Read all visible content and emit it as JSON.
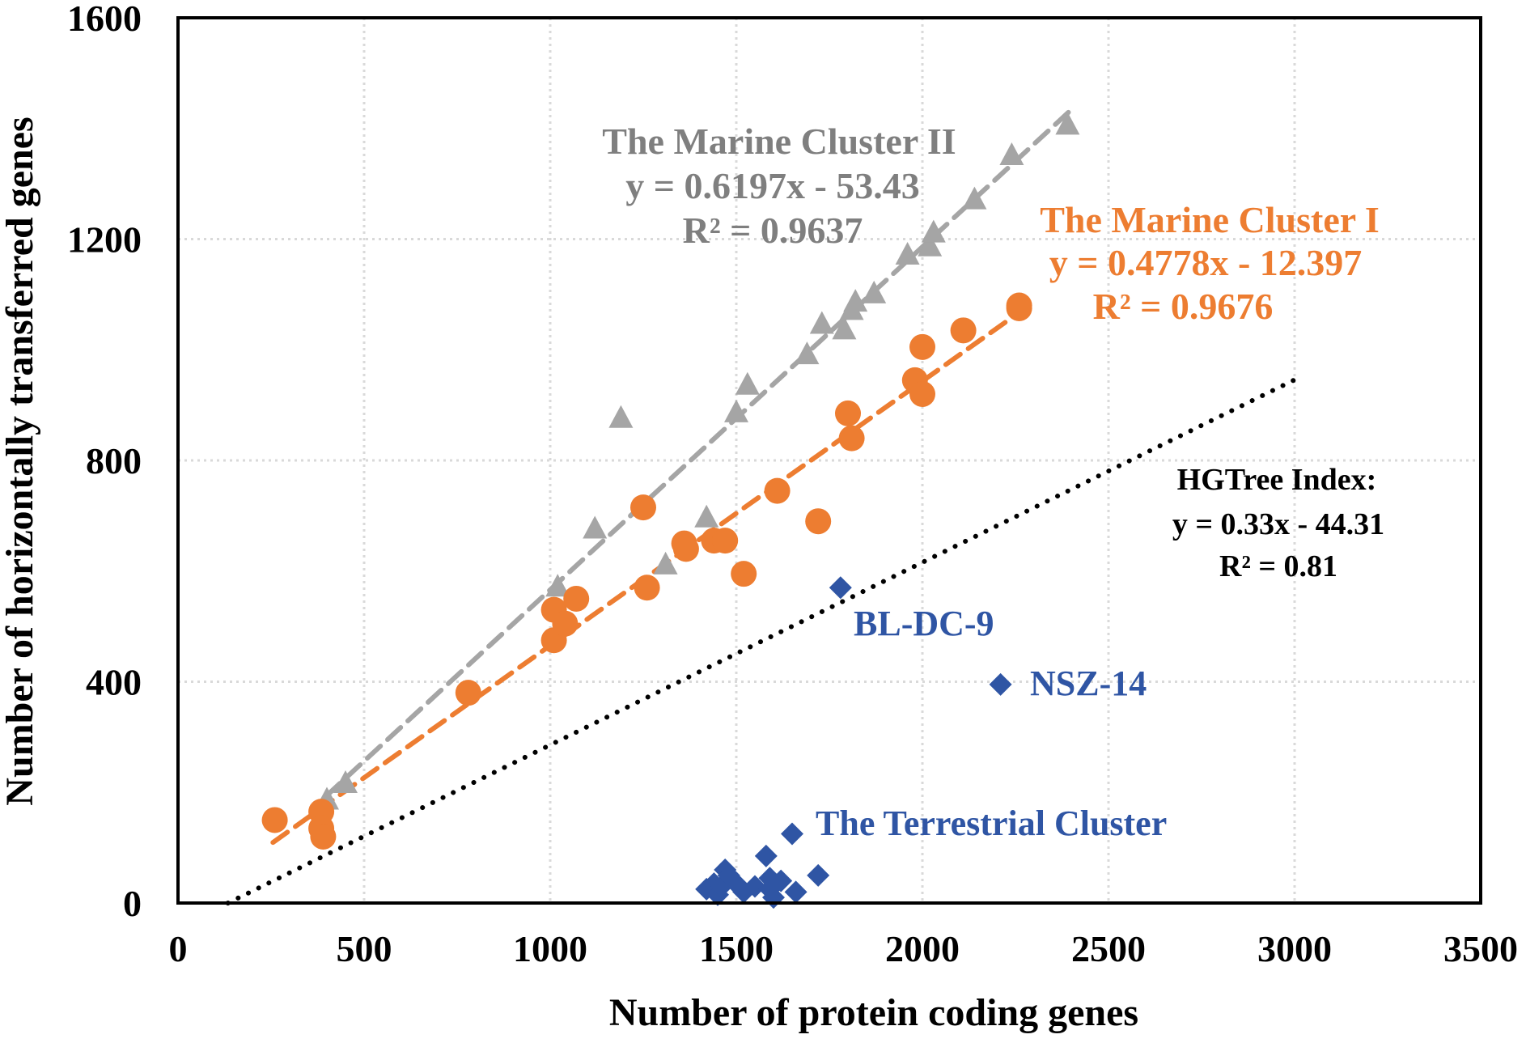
{
  "chart_data": {
    "type": "scatter",
    "title": "",
    "xlabel": "Number of protein coding genes",
    "ylabel": "Number of horizontally transferred genes",
    "xlim": [
      0,
      3500
    ],
    "ylim": [
      0,
      1600
    ],
    "xticks": [
      0,
      500,
      1000,
      1500,
      2000,
      2500,
      3000,
      3500
    ],
    "yticks": [
      0,
      400,
      800,
      1200,
      1600
    ],
    "grid": true,
    "colors": {
      "cluster2": "#a5a5a5",
      "cluster2_text": "#7f7f7f",
      "cluster1": "#ed7d31",
      "terrestrial": "#2f55a4",
      "hgtree": "#000000"
    },
    "series": [
      {
        "name": "The Marine Cluster II",
        "marker": "triangle",
        "points": [
          [
            400,
            185
          ],
          [
            450,
            215
          ],
          [
            1020,
            570
          ],
          [
            1120,
            675
          ],
          [
            1190,
            875
          ],
          [
            1310,
            610
          ],
          [
            1420,
            695
          ],
          [
            1500,
            885
          ],
          [
            1530,
            935
          ],
          [
            1690,
            990
          ],
          [
            1730,
            1045
          ],
          [
            1790,
            1035
          ],
          [
            1810,
            1070
          ],
          [
            1820,
            1085
          ],
          [
            1870,
            1100
          ],
          [
            1960,
            1170
          ],
          [
            2020,
            1185
          ],
          [
            2030,
            1210
          ],
          [
            2140,
            1270
          ],
          [
            2240,
            1350
          ],
          [
            2390,
            1405
          ]
        ],
        "trendline": {
          "equation": "y = 0.6197x - 53.43",
          "r2": "R² = 0.9637",
          "slope": 0.6197,
          "intercept": -53.43,
          "x_range": [
            400,
            2400
          ]
        }
      },
      {
        "name": "The Marine Cluster I",
        "marker": "circle",
        "points": [
          [
            260,
            150
          ],
          [
            385,
            165
          ],
          [
            385,
            135
          ],
          [
            390,
            120
          ],
          [
            780,
            380
          ],
          [
            1010,
            475
          ],
          [
            1010,
            530
          ],
          [
            1040,
            505
          ],
          [
            1070,
            550
          ],
          [
            1260,
            570
          ],
          [
            1250,
            715
          ],
          [
            1360,
            650
          ],
          [
            1365,
            640
          ],
          [
            1440,
            655
          ],
          [
            1470,
            655
          ],
          [
            1520,
            595
          ],
          [
            1610,
            745
          ],
          [
            1720,
            690
          ],
          [
            1800,
            885
          ],
          [
            1810,
            840
          ],
          [
            1980,
            945
          ],
          [
            2000,
            1005
          ],
          [
            2000,
            920
          ],
          [
            2110,
            1035
          ],
          [
            2260,
            1075
          ],
          [
            2260,
            1080
          ]
        ],
        "trendline": {
          "equation": "y = 0.4778x - 12.397",
          "r2": "R² = 0.9676",
          "slope": 0.4778,
          "intercept": -12.397,
          "x_range": [
            255,
            2265
          ]
        }
      },
      {
        "name": "The Terrestrial Cluster",
        "marker": "diamond",
        "points": [
          [
            1780,
            570
          ],
          [
            2210,
            395
          ],
          [
            1420,
            25
          ],
          [
            1440,
            35
          ],
          [
            1450,
            15
          ],
          [
            1460,
            30
          ],
          [
            1470,
            60
          ],
          [
            1480,
            50
          ],
          [
            1500,
            35
          ],
          [
            1520,
            20
          ],
          [
            1550,
            30
          ],
          [
            1580,
            85
          ],
          [
            1590,
            25
          ],
          [
            1600,
            10
          ],
          [
            1620,
            40
          ],
          [
            1650,
            125
          ],
          [
            1660,
            20
          ],
          [
            1720,
            50
          ],
          [
            1590,
            45
          ]
        ]
      }
    ],
    "hgtree_line": {
      "label": "HGTree Index:",
      "equation": "y = 0.33x - 44.31",
      "r2": "R² = 0.81",
      "slope": 0.33,
      "intercept": -44.31,
      "x_range": [
        134,
        3000
      ]
    },
    "annotations": {
      "bl_dc_9": "BL-DC-9",
      "nsz_14": "NSZ-14"
    }
  }
}
